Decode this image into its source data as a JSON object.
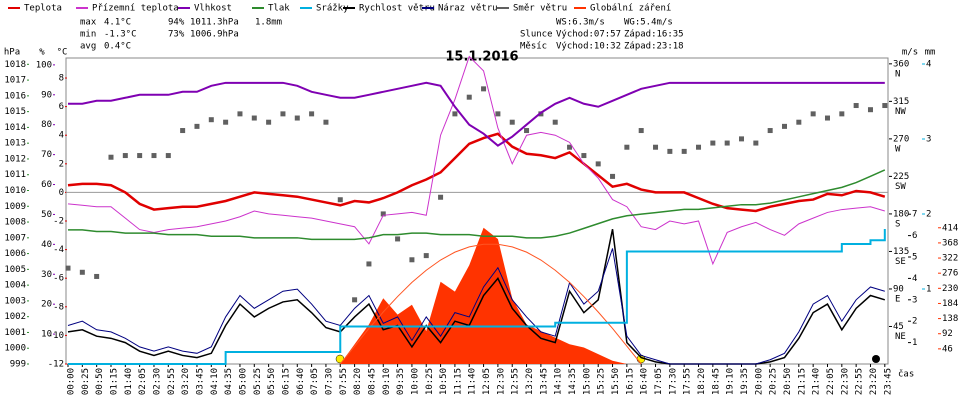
{
  "chart_data": {
    "type": "line",
    "title": "15.1.2016",
    "x_label": "čas",
    "categories": [
      "00:00",
      "00:25",
      "00:50",
      "01:15",
      "01:40",
      "02:05",
      "02:30",
      "02:55",
      "03:20",
      "03:45",
      "04:10",
      "04:35",
      "05:00",
      "05:25",
      "05:50",
      "06:15",
      "06:40",
      "07:05",
      "07:30",
      "07:55",
      "08:20",
      "08:45",
      "09:10",
      "09:35",
      "10:00",
      "10:25",
      "10:50",
      "11:15",
      "11:40",
      "12:05",
      "12:30",
      "12:55",
      "13:20",
      "13:45",
      "14:10",
      "14:35",
      "15:00",
      "15:25",
      "15:50",
      "16:15",
      "16:40",
      "17:05",
      "17:30",
      "17:55",
      "18:20",
      "18:45",
      "19:10",
      "19:35",
      "20:00",
      "20:25",
      "20:50",
      "21:15",
      "21:40",
      "22:05",
      "22:30",
      "22:55",
      "23:20",
      "23:45"
    ],
    "axes": {
      "pressure": {
        "unit": "hPa",
        "color": "#2e8b2e",
        "ylim": [
          999,
          1018.4
        ],
        "yticks": [
          999,
          1000,
          1001,
          1002,
          1003,
          1004,
          1005,
          1006,
          1007,
          1008,
          1009,
          1010,
          1011,
          1012,
          1013,
          1014,
          1015,
          1016,
          1017,
          1018
        ]
      },
      "humidity": {
        "unit": "%",
        "color": "#7f00b2",
        "ylim": [
          0,
          102.3
        ],
        "yticks": [
          10,
          20,
          30,
          40,
          50,
          60,
          70,
          80,
          90,
          100
        ]
      },
      "temp": {
        "unit": "°C",
        "color": "#e00000",
        "ylim": [
          -12,
          9.4
        ],
        "yticks": [
          -12,
          -10,
          -8,
          -6,
          -4,
          -2,
          0,
          2,
          4,
          6,
          8
        ]
      },
      "direction": {
        "color": "#000000",
        "ylim": [
          0,
          367
        ],
        "yticks": [
          45,
          90,
          135,
          180,
          225,
          270,
          315,
          360
        ],
        "compass": [
          "NE",
          "E",
          "SE",
          "S",
          "SW",
          "W",
          "NW",
          "N"
        ]
      },
      "wind": {
        "unit": "m/s",
        "color": "#000000",
        "ylim": [
          0,
          14.3
        ],
        "yticks": [
          1,
          2,
          3,
          4,
          5,
          6,
          7
        ]
      },
      "rain": {
        "unit": "mm",
        "color": "#00b0e0",
        "ylim": [
          0,
          4.08
        ],
        "yticks": [
          1,
          2,
          3,
          4
        ]
      },
      "solar": {
        "color": "#ff3300",
        "ylim": [
          0,
          930
        ],
        "yticks": [
          46,
          92,
          138,
          184,
          230,
          276,
          322,
          368,
          414
        ]
      }
    },
    "series": [
      {
        "name": "Teplota",
        "color": "#e00000",
        "axis": "temp",
        "style": "line",
        "width": 2.5,
        "values": [
          0.5,
          0.6,
          0.6,
          0.5,
          0.0,
          -0.8,
          -1.2,
          -1.1,
          -1.0,
          -1.0,
          -0.8,
          -0.6,
          -0.3,
          0.0,
          -0.1,
          -0.2,
          -0.3,
          -0.5,
          -0.7,
          -0.9,
          -0.6,
          -0.7,
          -0.4,
          0.0,
          0.5,
          0.9,
          1.4,
          2.4,
          3.4,
          3.8,
          4.1,
          3.2,
          2.7,
          2.6,
          2.4,
          2.8,
          2.0,
          1.2,
          0.4,
          0.6,
          0.2,
          0.0,
          0.0,
          0.0,
          -0.4,
          -0.8,
          -1.1,
          -1.2,
          -1.3,
          -1.0,
          -0.8,
          -0.6,
          -0.5,
          -0.1,
          -0.2,
          0.1,
          0.0,
          -0.3
        ]
      },
      {
        "name": "Přízemní teplota",
        "color": "#cc33cc",
        "axis": "temp",
        "style": "line",
        "width": 1,
        "values": [
          -0.8,
          -0.9,
          -1.0,
          -1.0,
          -1.8,
          -2.6,
          -2.8,
          -2.6,
          -2.5,
          -2.4,
          -2.2,
          -2.0,
          -1.7,
          -1.3,
          -1.5,
          -1.6,
          -1.7,
          -1.8,
          -2.0,
          -2.2,
          -2.4,
          -3.6,
          -1.6,
          -1.5,
          -1.4,
          -1.6,
          4.0,
          6.5,
          9.5,
          8.5,
          4.5,
          2.0,
          4.0,
          4.2,
          4.0,
          3.5,
          2.0,
          1.0,
          -0.5,
          -1.0,
          -2.4,
          -2.6,
          -2.0,
          -2.2,
          -2.0,
          -5.0,
          -2.8,
          -2.4,
          -2.1,
          -2.6,
          -3.0,
          -2.2,
          -1.8,
          -1.4,
          -1.2,
          -1.1,
          -1.0,
          -1.3
        ]
      },
      {
        "name": "Vlhkost",
        "color": "#7f00b2",
        "axis": "humidity",
        "style": "line",
        "width": 2,
        "values": [
          87,
          87,
          88,
          88,
          89,
          90,
          90,
          90,
          91,
          91,
          93,
          94,
          94,
          94,
          94,
          94,
          93,
          91,
          90,
          89,
          89,
          90,
          91,
          92,
          93,
          94,
          93,
          86,
          80,
          77,
          73,
          76,
          80,
          84,
          87,
          89,
          87,
          86,
          88,
          90,
          92,
          93,
          94,
          94,
          94,
          94,
          94,
          94,
          94,
          94,
          94,
          94,
          94,
          94,
          94,
          94,
          94,
          94
        ]
      },
      {
        "name": "Tlak",
        "color": "#2e8b2e",
        "axis": "pressure",
        "style": "line",
        "width": 1.5,
        "values": [
          1007.5,
          1007.5,
          1007.4,
          1007.4,
          1007.3,
          1007.3,
          1007.3,
          1007.2,
          1007.2,
          1007.2,
          1007.1,
          1007.1,
          1007.1,
          1007.0,
          1007.0,
          1007.0,
          1007.0,
          1006.9,
          1006.9,
          1006.9,
          1006.9,
          1007.0,
          1007.2,
          1007.2,
          1007.3,
          1007.3,
          1007.2,
          1007.2,
          1007.2,
          1007.1,
          1007.1,
          1007.1,
          1007.0,
          1007.0,
          1007.1,
          1007.3,
          1007.6,
          1007.9,
          1008.2,
          1008.4,
          1008.5,
          1008.6,
          1008.7,
          1008.8,
          1008.8,
          1008.9,
          1009.0,
          1009.1,
          1009.1,
          1009.2,
          1009.4,
          1009.6,
          1009.8,
          1010.0,
          1010.2,
          1010.5,
          1010.9,
          1011.3
        ]
      },
      {
        "name": "Srážky",
        "color": "#00b0e0",
        "axis": "rain",
        "style": "step",
        "width": 2,
        "values": [
          0,
          0,
          0,
          0,
          0,
          0,
          0,
          0,
          0,
          0,
          0,
          0.16,
          0.16,
          0.16,
          0.16,
          0.16,
          0.16,
          0.16,
          0.16,
          0.5,
          0.5,
          0.5,
          0.5,
          0.5,
          0.5,
          0.5,
          0.5,
          0.5,
          0.5,
          0.5,
          0.5,
          0.5,
          0.5,
          0.5,
          0.55,
          0.55,
          0.55,
          0.55,
          0.55,
          1.5,
          1.5,
          1.5,
          1.5,
          1.5,
          1.5,
          1.5,
          1.5,
          1.5,
          1.5,
          1.5,
          1.5,
          1.5,
          1.5,
          1.5,
          1.6,
          1.6,
          1.65,
          1.8
        ]
      },
      {
        "name": "Rychlost větru",
        "color": "#000000",
        "axis": "wind",
        "style": "line",
        "width": 1.5,
        "values": [
          1.5,
          1.6,
          1.3,
          1.2,
          1.0,
          0.6,
          0.4,
          0.6,
          0.4,
          0.3,
          0.5,
          1.8,
          2.8,
          2.2,
          2.6,
          2.9,
          3.0,
          2.4,
          1.7,
          1.5,
          2.2,
          2.8,
          1.6,
          1.8,
          0.8,
          1.8,
          1.0,
          2.0,
          1.8,
          3.2,
          4.0,
          2.6,
          1.8,
          1.2,
          1.0,
          3.4,
          2.4,
          3.0,
          6.3,
          1.0,
          0.3,
          0.1,
          0,
          0,
          0,
          0,
          0,
          0,
          0,
          0.1,
          0.3,
          1.2,
          2.4,
          2.8,
          1.6,
          2.6,
          3.2,
          3.0
        ]
      },
      {
        "name": "Náraz větru",
        "color": "#000080",
        "axis": "wind",
        "style": "line",
        "width": 1,
        "values": [
          1.8,
          2.0,
          1.6,
          1.5,
          1.2,
          0.8,
          0.6,
          0.8,
          0.6,
          0.5,
          0.8,
          2.2,
          3.2,
          2.6,
          3.0,
          3.4,
          3.5,
          2.8,
          2.0,
          1.8,
          2.6,
          3.2,
          1.9,
          2.2,
          1.1,
          2.2,
          1.3,
          2.4,
          2.2,
          3.6,
          4.5,
          3.0,
          2.2,
          1.5,
          1.3,
          3.8,
          2.8,
          3.4,
          5.4,
          1.3,
          0.4,
          0.2,
          0,
          0,
          0,
          0,
          0,
          0,
          0,
          0.2,
          0.5,
          1.5,
          2.8,
          3.2,
          2.0,
          3.0,
          3.6,
          3.4
        ]
      },
      {
        "name": "Směr větru",
        "color": "#606060",
        "axis": "direction",
        "style": "points",
        "values": [
          115,
          110,
          105,
          248,
          250,
          250,
          250,
          250,
          280,
          285,
          293,
          290,
          300,
          295,
          290,
          300,
          295,
          300,
          290,
          197,
          77,
          120,
          180,
          150,
          125,
          130,
          200,
          300,
          320,
          330,
          300,
          290,
          280,
          300,
          290,
          260,
          250,
          240,
          225,
          260,
          280,
          260,
          255,
          255,
          260,
          265,
          265,
          270,
          265,
          280,
          285,
          290,
          300,
          295,
          300,
          310,
          305,
          310
        ]
      },
      {
        "name": "Globální záření",
        "color": "#ff3300",
        "axis": "solar",
        "style": "area",
        "values": [
          0,
          0,
          0,
          0,
          0,
          0,
          0,
          0,
          0,
          0,
          0,
          0,
          0,
          0,
          0,
          0,
          0,
          0,
          0,
          0,
          60,
          120,
          200,
          150,
          180,
          100,
          250,
          220,
          300,
          414,
          380,
          200,
          120,
          100,
          80,
          60,
          50,
          30,
          10,
          0,
          0,
          0,
          0,
          0,
          0,
          0,
          0,
          0,
          0,
          0,
          0,
          0,
          0,
          0,
          0,
          0,
          0,
          0
        ]
      },
      {
        "color": "#ff5522",
        "axis": "solar",
        "style": "line",
        "width": 1,
        "values": [
          null,
          null,
          null,
          null,
          null,
          null,
          null,
          null,
          null,
          null,
          null,
          null,
          null,
          null,
          null,
          null,
          null,
          null,
          null,
          0,
          54,
          108,
          158,
          205,
          248,
          285,
          316,
          340,
          356,
          364,
          364,
          356,
          340,
          316,
          285,
          248,
          205,
          158,
          108,
          54,
          0,
          null,
          null,
          null,
          null,
          null,
          null,
          null,
          null,
          null,
          null,
          null,
          null,
          null,
          null,
          null,
          null,
          null
        ]
      }
    ],
    "stats": [
      {
        "label": "max",
        "temp": "4.1°C",
        "humidity": "94%",
        "pressure": "1011.3hPa",
        "rain": "1.8mm"
      },
      {
        "label": "min",
        "temp": "-1.3°C",
        "humidity": "73%",
        "pressure": "1006.9hPa"
      },
      {
        "label": "avg",
        "temp": "0.4°C"
      }
    ],
    "info": {
      "ws": "WS:6.3m/s",
      "wg": "WG:5.4m/s",
      "sun": "Slunce",
      "sun_rise": "Východ:07:57",
      "sun_set": "Západ:16:35",
      "moon": "Měsíc",
      "moon_rise": "Východ:10:32",
      "moon_set": "Západ:23:18"
    }
  }
}
